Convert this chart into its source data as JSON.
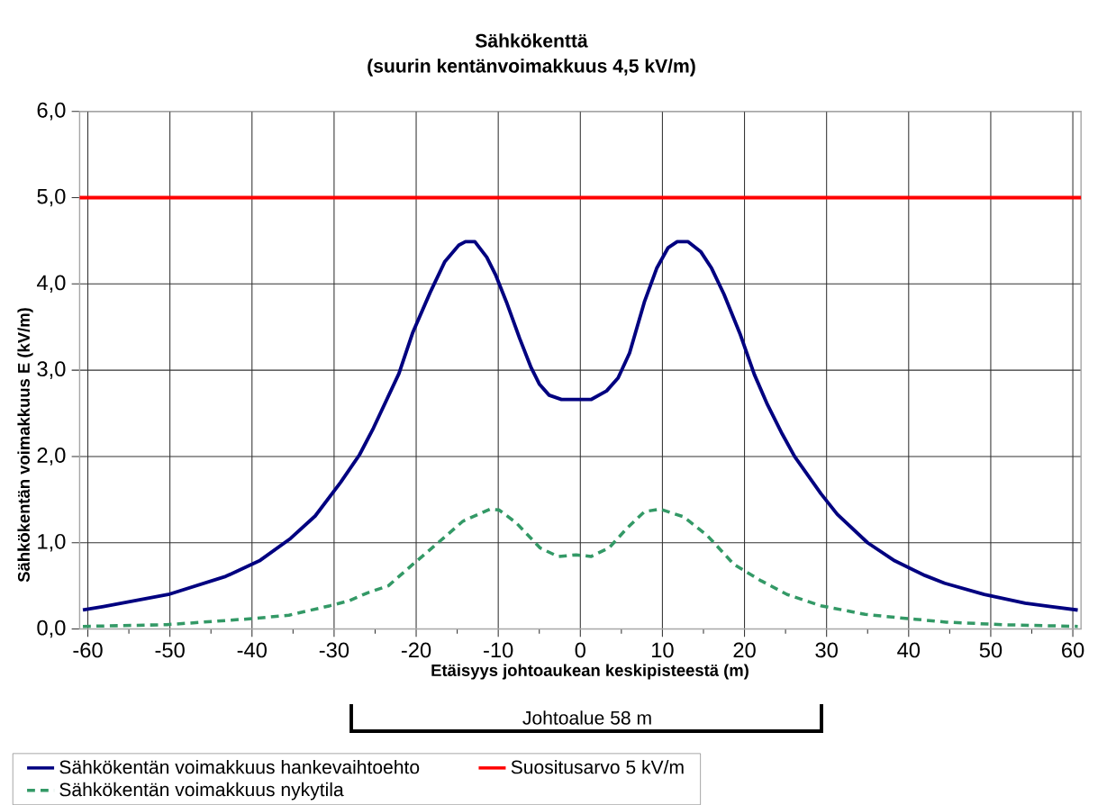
{
  "chart_data": {
    "type": "line",
    "title": "Sähkökenttä",
    "subtitle": "(suurin kentänvoimakkuus 4,5 kV/m)",
    "xlabel": "Etäisyys johtoaukean keskipisteestä (m)",
    "ylabel": "Sähkökentän voimakkuus E (kV/m)",
    "annotations": [
      "Johtoalue 58 m"
    ],
    "series": [
      {
        "name": "Sähkökentän voimakkuus hankevaihtoehto",
        "color": "#000080",
        "line_style": "solid",
        "x": [
          -60.6,
          -58.1,
          -50.2,
          -43.2,
          -39.1,
          -35.3,
          -32.3,
          -29.2,
          -26.9,
          -25.2,
          -22.1,
          -20.4,
          -18.3,
          -16.5,
          -14.8,
          -14.0,
          -12.85,
          -11.4,
          -10.3,
          -9.0,
          -7.4,
          -6.0,
          -5.0,
          -3.8,
          -2.3,
          1.3,
          3.2,
          4.6,
          6.0,
          7.8,
          9.3,
          10.7,
          11.8,
          13.1,
          14.7,
          16.0,
          17.5,
          19.5,
          21.2,
          22.8,
          24.6,
          26.1,
          29.3,
          31.3,
          35.0,
          38.3,
          42.0,
          44.4,
          49.2,
          54.2,
          57.3,
          60.6
        ],
        "values": [
          0.22,
          0.26,
          0.4,
          0.61,
          0.79,
          1.05,
          1.31,
          1.7,
          2.02,
          2.33,
          2.96,
          3.44,
          3.9,
          4.26,
          4.45,
          4.49,
          4.49,
          4.31,
          4.1,
          3.79,
          3.37,
          3.03,
          2.84,
          2.71,
          2.66,
          2.66,
          2.76,
          2.91,
          3.2,
          3.79,
          4.18,
          4.42,
          4.49,
          4.49,
          4.37,
          4.18,
          3.88,
          3.41,
          2.95,
          2.6,
          2.26,
          2.0,
          1.57,
          1.33,
          1.0,
          0.79,
          0.62,
          0.53,
          0.4,
          0.3,
          0.26,
          0.22
        ]
      },
      {
        "name": "Sähkökentän voimakkuus nykytila",
        "color": "#339966",
        "line_style": "dashed",
        "x": [
          -60.6,
          -50.4,
          -40.0,
          -35.5,
          -30.5,
          -28.1,
          -25.9,
          -23.4,
          -20.4,
          -17.2,
          -14.3,
          -11.0,
          -9.9,
          -7.8,
          -4.9,
          -2.7,
          -0.5,
          1.3,
          3.5,
          5.7,
          7.8,
          9.7,
          12.6,
          15.5,
          18.7,
          22.0,
          25.2,
          29.3,
          34.7,
          38.8,
          44.6,
          51.4,
          60.6
        ],
        "values": [
          0.03,
          0.05,
          0.12,
          0.16,
          0.27,
          0.33,
          0.42,
          0.5,
          0.75,
          1.01,
          1.25,
          1.39,
          1.38,
          1.23,
          0.94,
          0.84,
          0.86,
          0.84,
          0.94,
          1.17,
          1.36,
          1.39,
          1.3,
          1.08,
          0.75,
          0.56,
          0.4,
          0.27,
          0.17,
          0.13,
          0.08,
          0.05,
          0.03
        ]
      }
    ],
    "ref_lines": [
      {
        "axis": "y",
        "value": 5,
        "label": "Suositusarvo 5 kV/m",
        "color": "#ff0000"
      }
    ],
    "xlim": [
      -61,
      61
    ],
    "ylim": [
      0,
      6
    ],
    "xticks": [
      -60,
      -50,
      -40,
      -30,
      -20,
      -10,
      0,
      10,
      20,
      30,
      40,
      50,
      60
    ],
    "yticks": [
      {
        "value": 0,
        "label": "0,0"
      },
      {
        "value": 1,
        "label": "1,0"
      },
      {
        "value": 2,
        "label": "2,0"
      },
      {
        "value": 3,
        "label": "3,0"
      },
      {
        "value": 4,
        "label": "4,0"
      },
      {
        "value": 5,
        "label": "5,0"
      },
      {
        "value": 6,
        "label": "6,0"
      }
    ],
    "grid": true,
    "legend": "bottom"
  }
}
